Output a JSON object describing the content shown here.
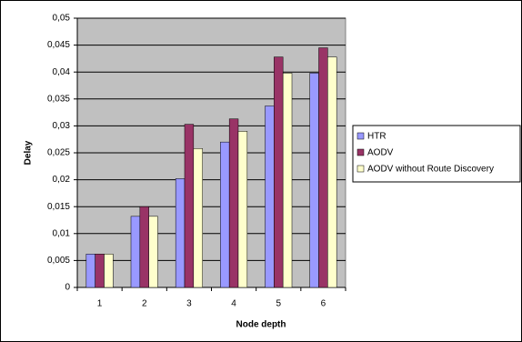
{
  "chart_data": {
    "type": "bar",
    "x_label": "Node depth",
    "y_label": "Delay",
    "categories": [
      "1",
      "2",
      "3",
      "4",
      "5",
      "6"
    ],
    "series": [
      {
        "name": "HTR",
        "color": "#9999ff",
        "values": [
          0.0062,
          0.0132,
          0.0202,
          0.027,
          0.0337,
          0.0398
        ]
      },
      {
        "name": "AODV",
        "color": "#993366",
        "values": [
          0.0062,
          0.015,
          0.0303,
          0.0313,
          0.0428,
          0.0445
        ]
      },
      {
        "name": "AODV without Route Discovery",
        "color": "#ffffcc",
        "values": [
          0.0062,
          0.0132,
          0.0258,
          0.029,
          0.0398,
          0.0428
        ]
      }
    ],
    "ylim": [
      0,
      0.05
    ],
    "yticks": [
      0,
      {
        "value": 0.005,
        "label": "0,005"
      },
      {
        "value": 0.01,
        "label": "0,01"
      },
      {
        "value": 0.015,
        "label": "0,015"
      },
      {
        "value": 0.02,
        "label": "0,02"
      },
      {
        "value": 0.025,
        "label": "0,025"
      },
      {
        "value": 0.03,
        "label": "0,03"
      },
      {
        "value": 0.035,
        "label": "0,035"
      },
      {
        "value": 0.04,
        "label": "0,04"
      },
      {
        "value": 0.045,
        "label": "0,045"
      },
      {
        "value": 0.05,
        "label": "0,05"
      }
    ],
    "grid": true,
    "plot_background": "#c0c0c0",
    "legend_position": "right"
  }
}
